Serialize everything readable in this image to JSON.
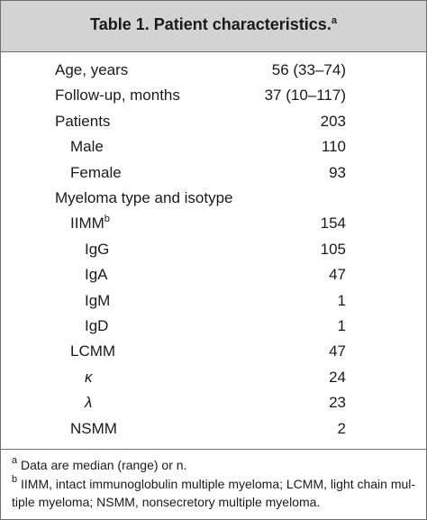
{
  "header": {
    "title": "Table 1. Patient characteristics.",
    "note": "a"
  },
  "table": {
    "rows": [
      {
        "label": "Age, years",
        "value": "56 (33–74)"
      },
      {
        "label": "Follow-up, months",
        "value": "37 (10–117)"
      },
      {
        "label": "Patients",
        "value": 203
      },
      {
        "label": "Male",
        "value": 110
      },
      {
        "label": "Female",
        "value": 93
      },
      {
        "label": "Myeloma type and isotype"
      },
      {
        "label": "IIMM",
        "note": "b",
        "value": 154
      },
      {
        "label": "IgG",
        "value": 105
      },
      {
        "label": "IgA",
        "value": 47
      },
      {
        "label": "IgM",
        "value": 1
      },
      {
        "label": "IgD",
        "value": 1
      },
      {
        "label": "LCMM",
        "value": 47
      },
      {
        "label": "κ",
        "value": 24
      },
      {
        "label": "λ",
        "value": 23
      },
      {
        "label": "NSMM",
        "value": 2
      }
    ]
  },
  "footnotes": [
    {
      "mark": "a",
      "lines": [
        "Data are median (range) or n."
      ]
    },
    {
      "mark": "b",
      "lines": [
        "IIMM, intact immunoglobulin multiple myeloma; LCMM, light chain mul-",
        "tiple myeloma; NSMM, nonsecretory multiple myeloma."
      ]
    }
  ]
}
